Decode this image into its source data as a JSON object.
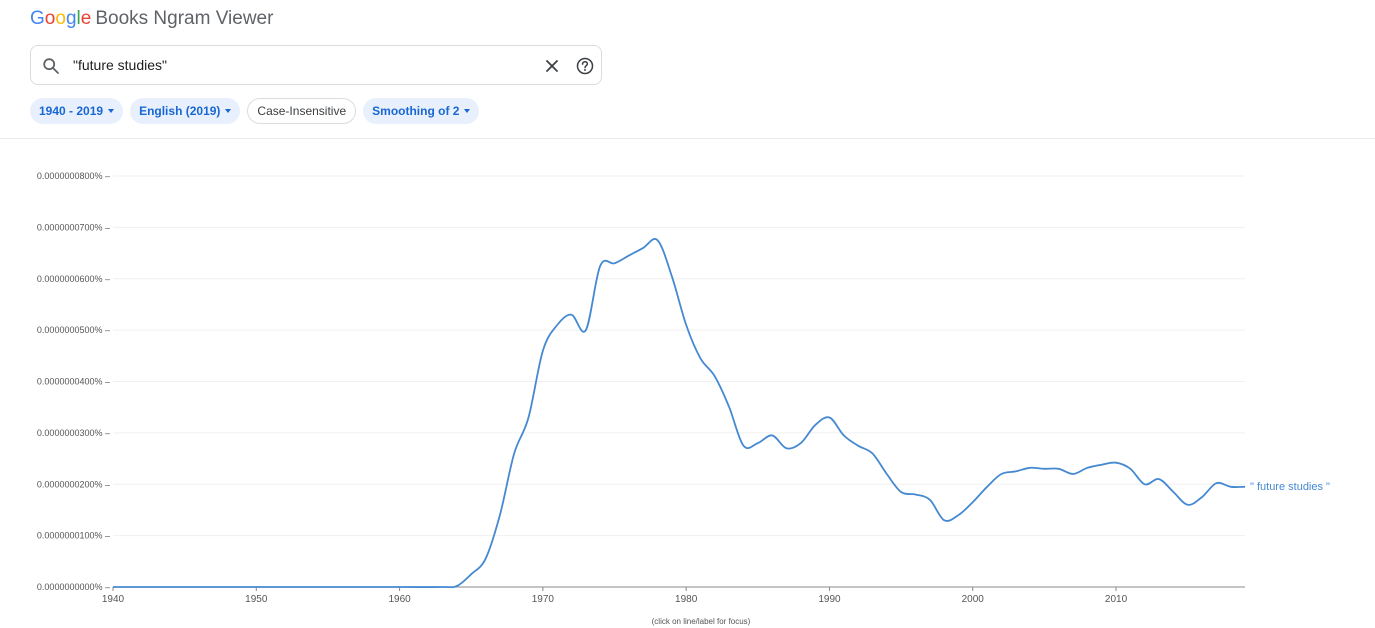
{
  "header": {
    "logo_letters": [
      "G",
      "o",
      "o",
      "g",
      "l",
      "e"
    ],
    "title": "Books Ngram Viewer"
  },
  "search": {
    "query": "\"future studies\""
  },
  "chips": [
    {
      "label": "1940 - 2019",
      "dropdown": true
    },
    {
      "label": "English (2019)",
      "dropdown": true
    },
    {
      "label": "Case-Insensitive",
      "dropdown": false
    },
    {
      "label": "Smoothing of 2",
      "dropdown": true
    }
  ],
  "chart_data": {
    "type": "line",
    "xlim": [
      1940,
      2019
    ],
    "ylim": [
      0,
      8e-08
    ],
    "x_ticks": [
      1940,
      1950,
      1960,
      1970,
      1980,
      1990,
      2000,
      2010
    ],
    "y_ticks": [
      0,
      1e-08,
      2e-08,
      3e-08,
      4e-08,
      5e-08,
      6e-08,
      7e-08,
      8e-08
    ],
    "y_tick_labels": [
      "0.0000000000%",
      "0.0000000100%",
      "0.0000000200%",
      "0.0000000300%",
      "0.0000000400%",
      "0.0000000500%",
      "0.0000000600%",
      "0.0000000700%",
      "0.0000000800%"
    ],
    "grid": true,
    "footnote": "(click on line/label for focus)",
    "series": [
      {
        "name": "\" future studies \"",
        "color": "#4589d1",
        "x": [
          1940,
          1945,
          1950,
          1955,
          1960,
          1963,
          1964,
          1965,
          1966,
          1967,
          1968,
          1969,
          1970,
          1971,
          1972,
          1973,
          1974,
          1975,
          1976,
          1977,
          1978,
          1979,
          1980,
          1981,
          1982,
          1983,
          1984,
          1985,
          1986,
          1987,
          1988,
          1989,
          1990,
          1991,
          1992,
          1993,
          1994,
          1995,
          1996,
          1997,
          1998,
          1999,
          2000,
          2001,
          2002,
          2003,
          2004,
          2005,
          2006,
          2007,
          2008,
          2009,
          2010,
          2011,
          2012,
          2013,
          2014,
          2015,
          2016,
          2017,
          2018,
          2019
        ],
        "y": [
          0,
          0,
          0,
          0,
          0,
          0,
          2e-10,
          2.5e-09,
          5.5e-09,
          1.4e-08,
          2.6e-08,
          3.3e-08,
          4.6e-08,
          5.1e-08,
          5.3e-08,
          5e-08,
          6.25e-08,
          6.3e-08,
          6.45e-08,
          6.6e-08,
          6.75e-08,
          6.05e-08,
          5.1e-08,
          4.45e-08,
          4.1e-08,
          3.5e-08,
          2.75e-08,
          2.8e-08,
          2.95e-08,
          2.7e-08,
          2.8e-08,
          3.15e-08,
          3.3e-08,
          2.95e-08,
          2.75e-08,
          2.6e-08,
          2.2e-08,
          1.85e-08,
          1.8e-08,
          1.7e-08,
          1.3e-08,
          1.4e-08,
          1.65e-08,
          1.95e-08,
          2.2e-08,
          2.25e-08,
          2.32e-08,
          2.3e-08,
          2.3e-08,
          2.2e-08,
          2.32e-08,
          2.38e-08,
          2.42e-08,
          2.3e-08,
          2e-08,
          2.1e-08,
          1.85e-08,
          1.6e-08,
          1.75e-08,
          2.02e-08,
          1.95e-08,
          1.95e-08
        ]
      }
    ]
  }
}
